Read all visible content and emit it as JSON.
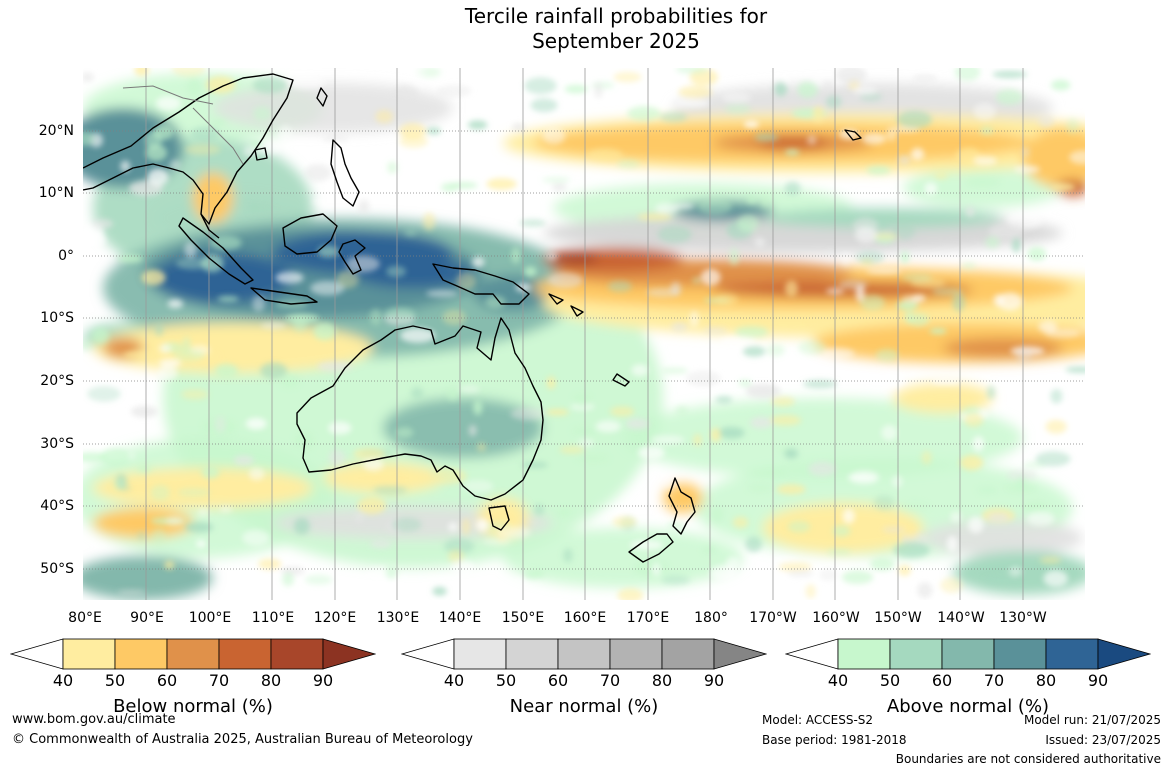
{
  "title_line1": "Tercile rainfall probabilities for",
  "title_line2": "September 2025",
  "lat_labels": [
    "20°N",
    "10°N",
    "0°",
    "10°S",
    "20°S",
    "30°S",
    "40°S",
    "50°S"
  ],
  "lon_labels": [
    "80°E",
    "90°E",
    "100°E",
    "110°E",
    "120°E",
    "130°E",
    "140°E",
    "150°E",
    "160°E",
    "170°E",
    "180°",
    "170°W",
    "160°W",
    "150°W",
    "140°W",
    "130°W"
  ],
  "colorbars": [
    {
      "name": "below",
      "title": "Below normal (%)",
      "ticks": [
        "40",
        "50",
        "60",
        "70",
        "80",
        "90"
      ],
      "colors": [
        "#ffeda0",
        "#fec965",
        "#e0914a",
        "#c96431",
        "#a8462a",
        "#8c3322"
      ]
    },
    {
      "name": "near",
      "title": "Near normal (%)",
      "ticks": [
        "40",
        "50",
        "60",
        "70",
        "80",
        "90"
      ],
      "colors": [
        "#e6e6e6",
        "#d4d4d4",
        "#c4c4c4",
        "#b3b3b3",
        "#a3a3a3",
        "#858585"
      ]
    },
    {
      "name": "above",
      "title": "Above normal (%)",
      "ticks": [
        "40",
        "50",
        "60",
        "70",
        "80",
        "90"
      ],
      "colors": [
        "#c7f7cd",
        "#a5d9bf",
        "#83b8ac",
        "#5a9199",
        "#2f6495",
        "#1a4a80"
      ]
    }
  ],
  "footer": {
    "url": "www.bom.gov.au/climate",
    "copyright": "© Commonwealth of Australia 2025, Australian Bureau of Meteorology",
    "model": "Model: ACCESS-S2",
    "base_period": "Base period: 1981-2018",
    "model_run": "Model run: 21/07/2025",
    "issued": "Issued: 23/07/2025",
    "disclaimer": "Boundaries are not considered authoritative"
  }
}
